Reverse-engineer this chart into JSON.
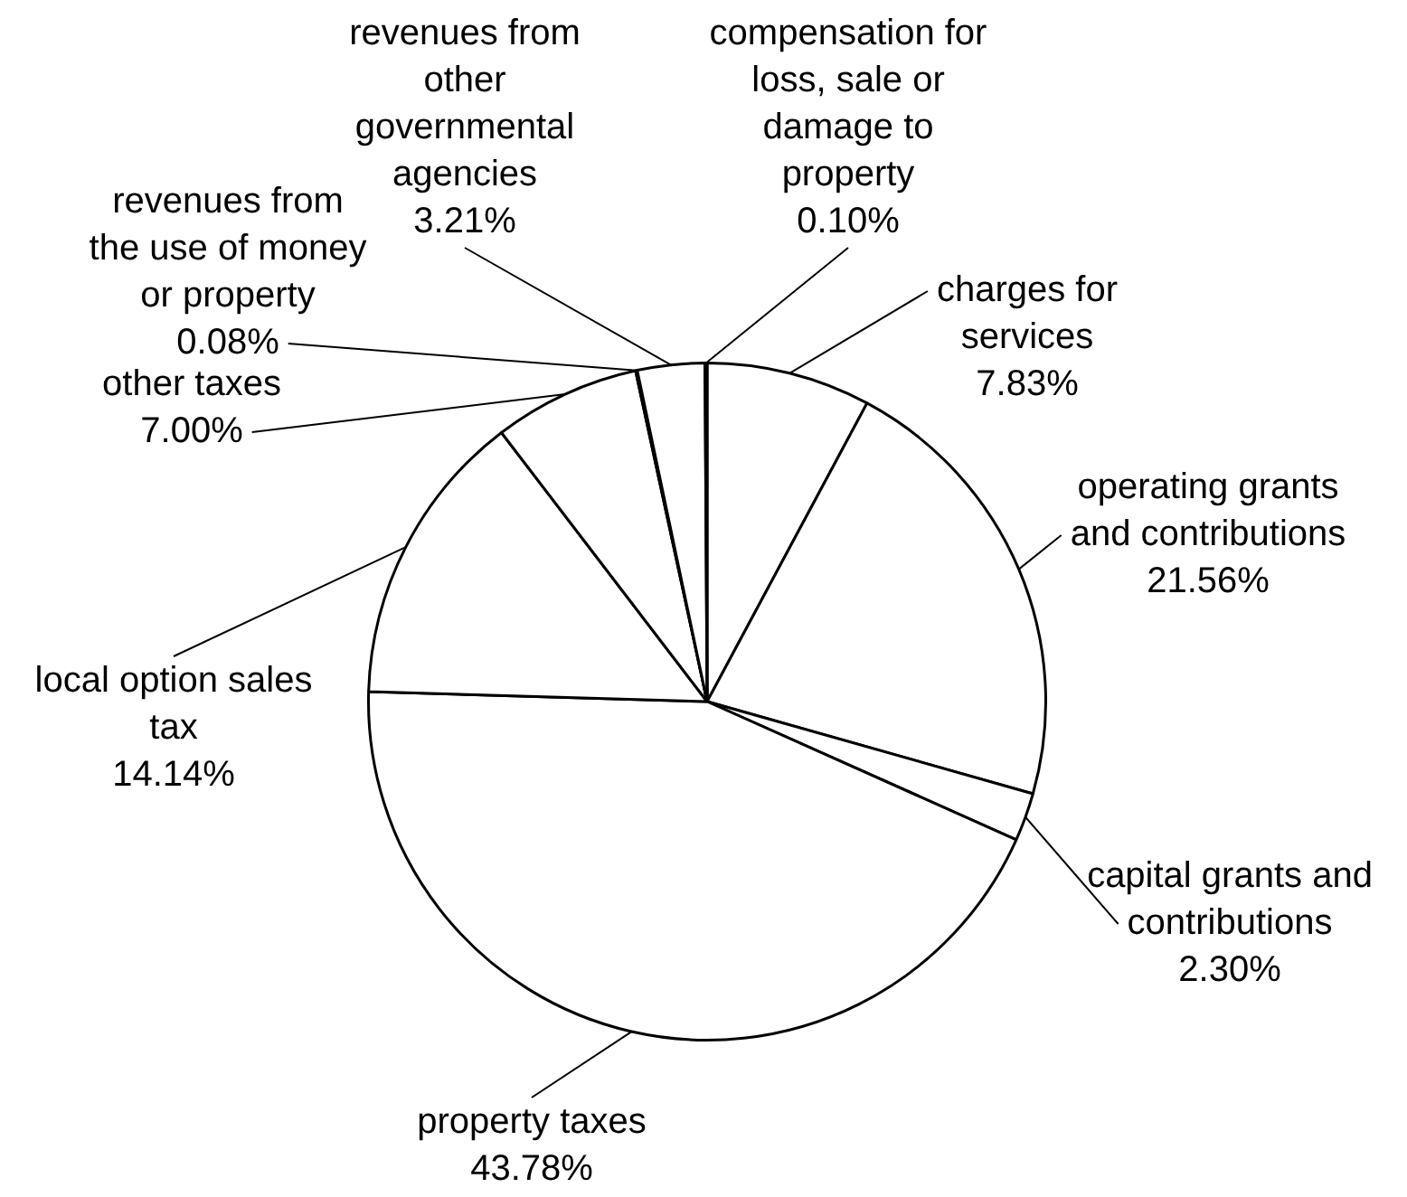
{
  "chart_data": {
    "type": "pie",
    "categories": [
      "charges for services",
      "operating grants and contributions",
      "capital grants and contributions",
      "property taxes",
      "local option sales tax",
      "other taxes",
      "revenues from the use of money or property",
      "revenues from other governmental agencies",
      "compensation for loss, sale or damage to property"
    ],
    "values": [
      7.83,
      21.56,
      2.3,
      43.78,
      14.14,
      7.0,
      0.08,
      3.21,
      0.1
    ],
    "colors": [
      "#ffffff",
      "#ffffff",
      "#ffffff",
      "#ffffff",
      "#ffffff",
      "#ffffff",
      "#ffffff",
      "#ffffff",
      "#ffffff"
    ],
    "value_labels": [
      "7.83%",
      "21.56%",
      "2.30%",
      "43.78%",
      "14.14%",
      "7.00%",
      "0.08%",
      "3.21%",
      "0.10%"
    ],
    "legend": false
  }
}
